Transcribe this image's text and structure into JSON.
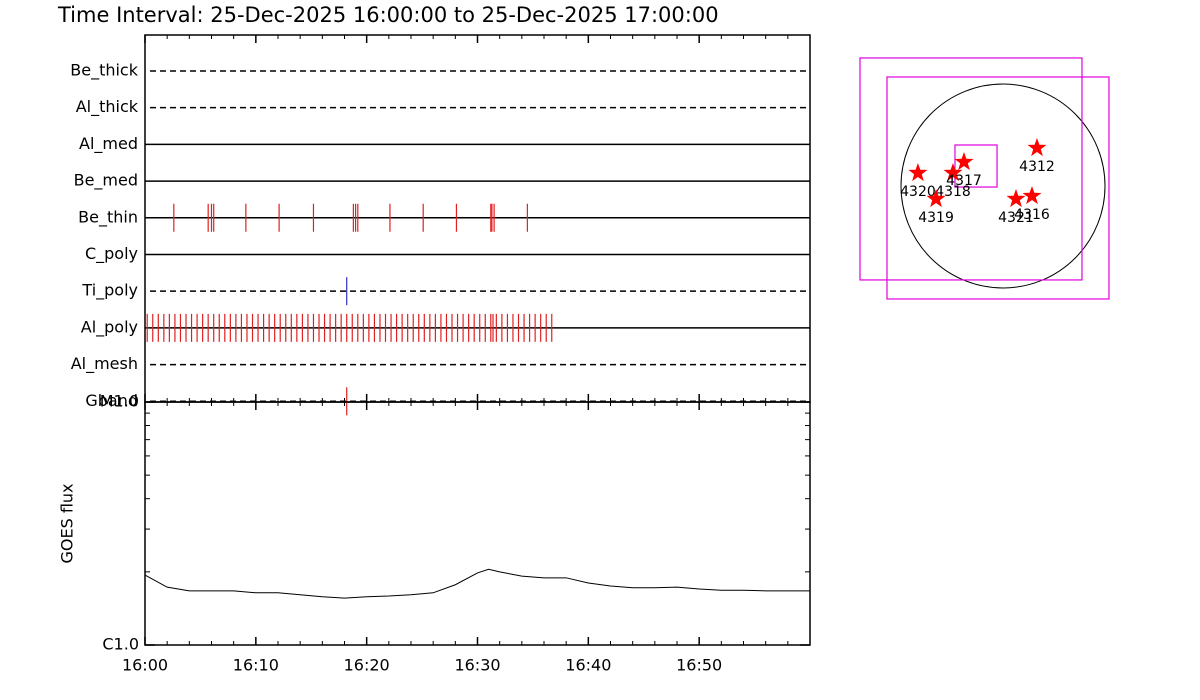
{
  "chart_data": [
    {
      "type": "timeline",
      "title": "Time Interval: 25-Dec-2025 16:00:00 to 25-Dec-2025 17:00:00",
      "series": [
        {
          "name": "Be_thick",
          "style": "dashed",
          "values": []
        },
        {
          "name": "Al_thick",
          "style": "dashed",
          "values": []
        },
        {
          "name": "Al_med",
          "style": "solid",
          "values": []
        },
        {
          "name": "Be_med",
          "style": "solid",
          "values": []
        },
        {
          "name": "Be_thin",
          "style": "solid",
          "color": "#e02020",
          "values": [
            2.6,
            5.7,
            6.0,
            6.2,
            9.1,
            12.1,
            15.2,
            18.8,
            19.0,
            19.2,
            22.1,
            25.1,
            28.1,
            31.2,
            31.3,
            31.5,
            34.5
          ]
        },
        {
          "name": "C_poly",
          "style": "solid",
          "values": []
        },
        {
          "name": "Ti_poly",
          "style": "dashed",
          "color": "#3030c0",
          "values": [
            18.2
          ]
        },
        {
          "name": "Al_poly",
          "style": "solid",
          "color": "#e02020",
          "values": [
            0.2,
            0.7,
            1.2,
            1.7,
            2.2,
            2.7,
            3.2,
            3.7,
            4.2,
            4.7,
            5.2,
            5.7,
            6.2,
            6.7,
            7.2,
            7.7,
            8.2,
            8.7,
            9.2,
            9.7,
            10.2,
            10.7,
            11.2,
            11.7,
            12.2,
            12.7,
            13.2,
            13.7,
            14.2,
            14.7,
            15.2,
            15.7,
            16.2,
            16.7,
            17.2,
            17.7,
            18.2,
            18.7,
            19.2,
            19.7,
            20.2,
            20.7,
            21.2,
            21.7,
            22.2,
            22.7,
            23.2,
            23.7,
            24.2,
            24.7,
            25.2,
            25.7,
            26.2,
            26.7,
            27.2,
            27.7,
            28.2,
            28.7,
            29.2,
            29.7,
            30.2,
            30.7,
            31.2,
            31.4,
            31.7,
            32.2,
            32.7,
            33.2,
            33.7,
            34.2,
            34.7,
            35.2,
            35.7,
            36.2,
            36.7
          ]
        },
        {
          "name": "Al_mesh",
          "style": "dashed",
          "values": []
        },
        {
          "name": "Gband",
          "style": "dashed",
          "color": "#e02020",
          "values": [
            18.2
          ]
        }
      ]
    },
    {
      "type": "line",
      "ylabel": "GOES flux",
      "log": true,
      "color": "#000000",
      "xlim": [
        0,
        60
      ],
      "xticks": [
        {
          "value": 0,
          "label": "16:00"
        },
        {
          "value": 10,
          "label": "16:10"
        },
        {
          "value": 20,
          "label": "16:20"
        },
        {
          "value": 30,
          "label": "16:30"
        },
        {
          "value": 40,
          "label": "16:40"
        },
        {
          "value": 50,
          "label": "16:50"
        }
      ],
      "xminor": [
        2,
        4,
        6,
        8,
        12,
        14,
        16,
        18,
        22,
        24,
        26,
        28,
        32,
        34,
        36,
        38,
        42,
        44,
        46,
        48,
        52,
        54,
        56,
        58
      ],
      "ylim": [
        1e-06,
        1e-05
      ],
      "yticks": [
        {
          "value": 1e-06,
          "label": "C1.0"
        },
        {
          "value": 1e-05,
          "label": "M1.0"
        }
      ],
      "yminor": [
        2e-06,
        3e-06,
        4e-06,
        5e-06,
        6e-06,
        7e-06,
        8e-06,
        9e-06
      ],
      "x": [
        0,
        2,
        4,
        6,
        8,
        10,
        12,
        14,
        16,
        18,
        20,
        22,
        24,
        26,
        28,
        30,
        31,
        32,
        34,
        36,
        38,
        40,
        42,
        44,
        46,
        48,
        50,
        52,
        54,
        56,
        58,
        60
      ],
      "values": [
        1.94e-06,
        1.73e-06,
        1.67e-06,
        1.67e-06,
        1.67e-06,
        1.64e-06,
        1.64e-06,
        1.61e-06,
        1.58e-06,
        1.56e-06,
        1.58e-06,
        1.59e-06,
        1.61e-06,
        1.64e-06,
        1.77e-06,
        1.98e-06,
        2.05e-06,
        2e-06,
        1.92e-06,
        1.89e-06,
        1.89e-06,
        1.8e-06,
        1.75e-06,
        1.72e-06,
        1.72e-06,
        1.73e-06,
        1.7e-06,
        1.68e-06,
        1.68e-06,
        1.67e-06,
        1.67e-06,
        1.67e-06
      ]
    },
    {
      "type": "map",
      "sun_radius": 975,
      "color": "#e000e0",
      "marker_color": "#ff0000",
      "fovs": [
        {
          "x": -306,
          "y": 163,
          "width": 2122,
          "height": 2122
        },
        {
          "x": -48,
          "y": -19,
          "width": 2122,
          "height": 2122
        },
        {
          "x": -258,
          "y": 191,
          "width": 402,
          "height": 402
        }
      ],
      "regions": [
        {
          "label": "4312",
          "x": 325,
          "y": 363
        },
        {
          "label": "4320",
          "x": -813,
          "y": 124
        },
        {
          "label": "4318",
          "x": -478,
          "y": 124
        },
        {
          "label": "4317",
          "x": -373,
          "y": 229
        },
        {
          "label": "4319",
          "x": -640,
          "y": -124
        },
        {
          "label": "4321",
          "x": 124,
          "y": -124
        },
        {
          "label": "4316",
          "x": 277,
          "y": -96
        }
      ]
    }
  ]
}
